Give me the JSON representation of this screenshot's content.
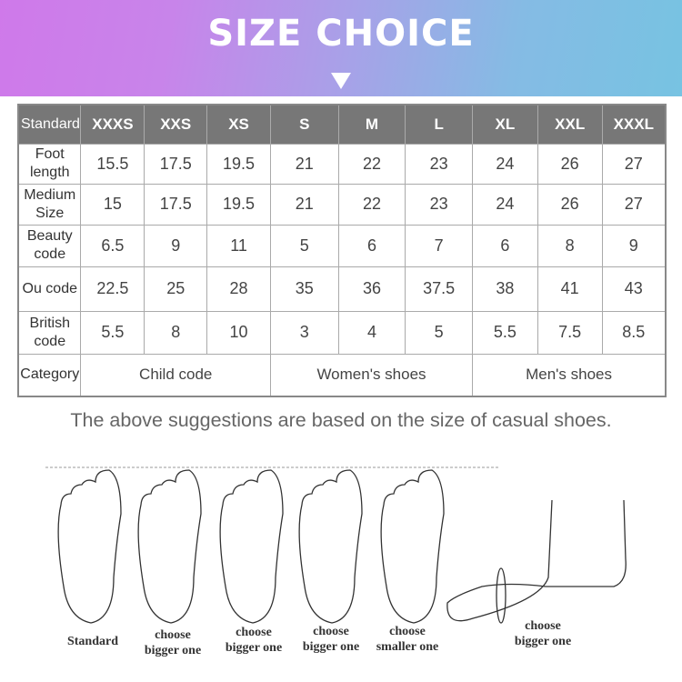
{
  "banner": {
    "title": "SIZE CHOICE",
    "gradient": [
      "#cf79ea",
      "#77c3e2"
    ]
  },
  "table": {
    "header": [
      "Standard",
      "XXXS",
      "XXS",
      "XS",
      "S",
      "M",
      "L",
      "XL",
      "XXL",
      "XXXL"
    ],
    "rows": [
      {
        "label": [
          "Foot",
          "length"
        ],
        "values": [
          "15.5",
          "17.5",
          "19.5",
          "21",
          "22",
          "23",
          "24",
          "26",
          "27"
        ]
      },
      {
        "label": [
          "Medium",
          "Size"
        ],
        "values": [
          "15",
          "17.5",
          "19.5",
          "21",
          "22",
          "23",
          "24",
          "26",
          "27"
        ]
      },
      {
        "label": [
          "Beauty",
          "code"
        ],
        "values": [
          "6.5",
          "9",
          "11",
          "5",
          "6",
          "7",
          "6",
          "8",
          "9"
        ]
      },
      {
        "label": [
          "Ou code",
          ""
        ],
        "values": [
          "22.5",
          "25",
          "28",
          "35",
          "36",
          "37.5",
          "38",
          "41",
          "43"
        ]
      },
      {
        "label": [
          "British",
          "code"
        ],
        "values": [
          "5.5",
          "8",
          "10",
          "3",
          "4",
          "5",
          "5.5",
          "7.5",
          "8.5"
        ]
      }
    ],
    "category": {
      "label": "Category",
      "groups": [
        "Child code",
        "Women's shoes",
        "Men's shoes"
      ]
    }
  },
  "note": "The above suggestions are based on the size of casual shoes.",
  "feet": [
    {
      "line1": "Standard",
      "line2": ""
    },
    {
      "line1": "choose",
      "line2": "bigger one"
    },
    {
      "line1": "choose",
      "line2": "bigger one"
    },
    {
      "line1": "choose",
      "line2": "bigger one"
    },
    {
      "line1": "choose",
      "line2": "smaller one"
    },
    {
      "line1": "choose",
      "line2": "bigger one"
    }
  ]
}
